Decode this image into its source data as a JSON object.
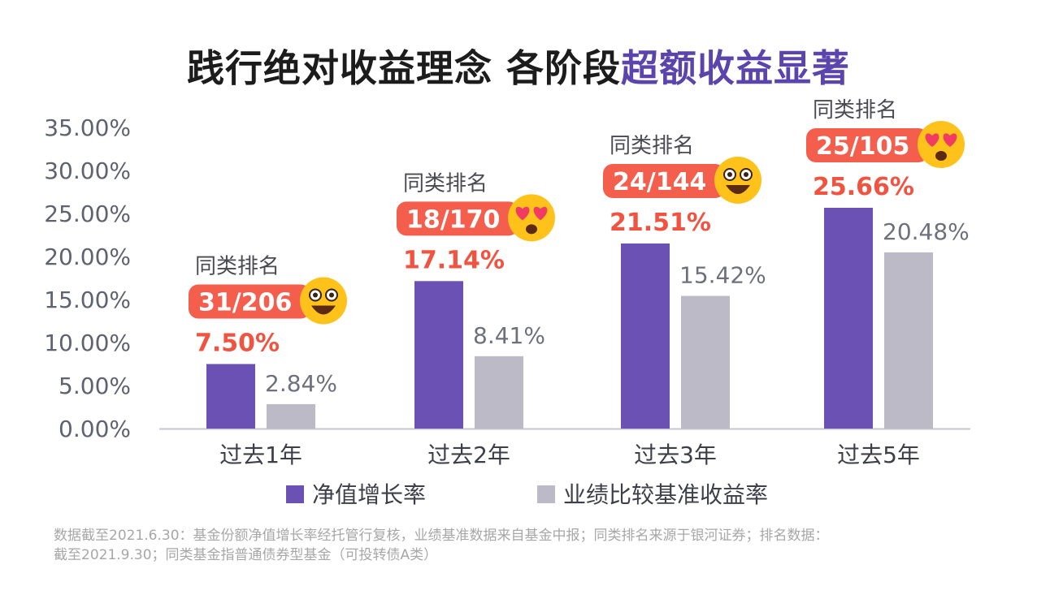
{
  "title": {
    "main": "践行绝对收益理念 各阶段",
    "highlight": "超额收益显著"
  },
  "chart_data": {
    "type": "bar",
    "categories": [
      "过去1年",
      "过去2年",
      "过去3年",
      "过去5年"
    ],
    "series": [
      {
        "name": "净值增长率",
        "values": [
          7.5,
          17.14,
          21.51,
          25.66
        ],
        "labels": [
          "7.50%",
          "17.14%",
          "21.51%",
          "25.66%"
        ],
        "color": "#6a51b3"
      },
      {
        "name": "业绩比较基准收益率",
        "values": [
          2.84,
          8.41,
          15.42,
          20.48
        ],
        "labels": [
          "2.84%",
          "8.41%",
          "15.42%",
          "20.48%"
        ],
        "color": "#bcbac6"
      }
    ],
    "y_ticks": [
      "0.00%",
      "5.00%",
      "10.00%",
      "15.00%",
      "20.00%",
      "25.00%",
      "30.00%",
      "35.00%"
    ],
    "ylim": [
      0,
      35
    ],
    "legend_position": "bottom",
    "grid": false,
    "rankings": [
      {
        "caption": "同类排名",
        "rank": "31/206",
        "emoji": "grinning-face"
      },
      {
        "caption": "同类排名",
        "rank": "18/170",
        "emoji": "heart-eyes-face"
      },
      {
        "caption": "同类排名",
        "rank": "24/144",
        "emoji": "grinning-face"
      },
      {
        "caption": "同类排名",
        "rank": "25/105",
        "emoji": "heart-eyes-face"
      }
    ],
    "colors": {
      "value_label": "#f0533f",
      "ranking_badge": "#f45e4c",
      "emoji_face": "#ffc21a",
      "emoji_heart": "#f23b63"
    }
  },
  "footnote": {
    "line1": "数据截至2021.6.30：基金份额净值增长率经托管行复核，业绩基准数据来自基金中报；同类排名来源于银河证券；排名数据：",
    "line2": "截至2021.9.30；同类基金指普通债券型基金（可投转债A类）"
  }
}
